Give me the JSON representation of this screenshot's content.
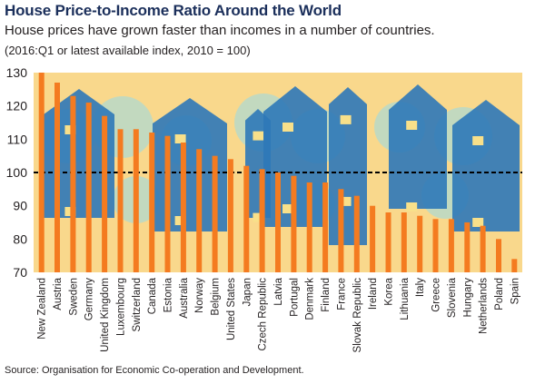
{
  "title": "House Price-to-Income Ratio Around the World",
  "subtitle": "House prices have grown faster than incomes in a number of countries.",
  "note": "(2016:Q1 or latest available index, 2010 = 100)",
  "source": "Source: Organisation for Economic Co-operation and Development.",
  "colors": {
    "bar": "#f47b20",
    "panel": "#f9d88c",
    "house_blue": "#2e78b8",
    "tree_teal": "#b9d9c8",
    "window": "#f8e08a",
    "reference_line": "#000000"
  },
  "chart_data": {
    "type": "bar",
    "title": "House Price-to-Income Ratio Around the World",
    "xlabel": "",
    "ylabel": "",
    "ylim": [
      70,
      130
    ],
    "yticks": [
      70,
      80,
      90,
      100,
      110,
      120,
      130
    ],
    "reference_line": 100,
    "grid": false,
    "categories": [
      "New Zealand",
      "Austria",
      "Sweden",
      "Germany",
      "United Kingdom",
      "Luxembourg",
      "Switzerland",
      "Canada",
      "Estonia",
      "Australia",
      "Norway",
      "Belgium",
      "United States",
      "Japan",
      "Czech Republic",
      "Latvia",
      "Portugal",
      "Denmark",
      "Finland",
      "France",
      "Slovak Republic",
      "Ireland",
      "Korea",
      "Lithuania",
      "Italy",
      "Greece",
      "Slovenia",
      "Hungary",
      "Netherlands",
      "Poland",
      "Spain"
    ],
    "values": [
      130,
      127,
      123,
      121,
      117,
      113,
      113,
      112,
      111,
      109,
      107,
      105,
      104,
      102,
      101,
      100,
      99,
      97,
      97,
      95,
      93,
      90,
      88,
      88,
      87,
      86,
      86,
      85,
      84,
      80,
      74
    ]
  }
}
